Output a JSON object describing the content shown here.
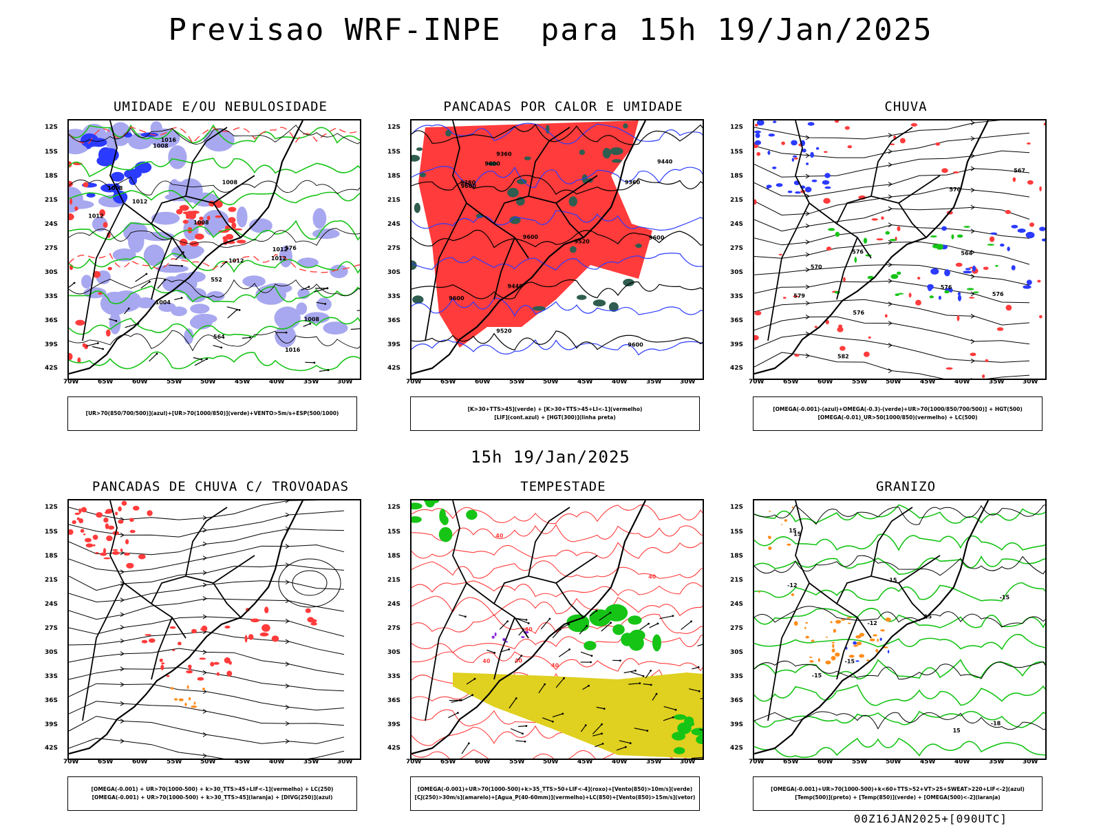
{
  "main_title": "Previsao WRF-INPE  para 15h 19/Jan/2025",
  "mid_title": "15h 19/Jan/2025",
  "run_label": "00Z16JAN2025+[090UTC]",
  "axes": {
    "lat_labels": [
      "12S",
      "15S",
      "18S",
      "21S",
      "24S",
      "27S",
      "30S",
      "33S",
      "36S",
      "39S",
      "42S"
    ],
    "lon_labels": [
      "70W",
      "65W",
      "60W",
      "55W",
      "50W",
      "45W",
      "40W",
      "35W",
      "30W"
    ]
  },
  "colors": {
    "red": "#ff3b3b",
    "blue": "#2b3bff",
    "green": "#16c416",
    "lavender": "#a8a8f0",
    "darkgreen": "#2f5d50",
    "yellow": "#e0d020",
    "orange": "#ff8c1a",
    "purple": "#8a2be2"
  },
  "panels": [
    {
      "title": "UMIDADE E/OU NEBULOSIDADE",
      "legend": [
        "[UR>70(850/700/500)](azul)+[UR>70(1000/850)](verde)+VENTO>5m/s+ESP(500/1000)"
      ],
      "labels": [
        "1012",
        "1008",
        "1008",
        "1008",
        "1004",
        "1008",
        "1012",
        "1012",
        "1008",
        "1012",
        "1016",
        "1012",
        "1016",
        "576",
        "552",
        "564"
      ]
    },
    {
      "title": "PANCADAS POR CALOR E UMIDADE",
      "legend": [
        "[K>30+TTS>45](verde) + [K>30+TTS>45+LI<-1](vermelho)",
        "[LIF](cont.azul) + [HGT(300)](linha preta)"
      ],
      "labels": [
        "9600",
        "9600",
        "9600",
        "9600",
        "9600",
        "9600",
        "9520",
        "9520",
        "9440",
        "9440",
        "9360",
        "9360",
        "9280"
      ]
    },
    {
      "title": "CHUVA",
      "legend": [
        "[OMEGA(-0.001)-(azul)+OMEGA(-0.3)-(verde)+UR>70(1000/850/700/500)] + HGT(500)",
        "[OMEGA(-0.01)_UR>50(1000/850)(vermelho) + LC(500)"
      ],
      "labels": [
        "582",
        "576",
        "576",
        "576",
        "576",
        "570",
        "570",
        "567",
        "564",
        "579"
      ]
    },
    {
      "title": "PANCADAS DE CHUVA C/ TROVOADAS",
      "legend": [
        "[OMEGA(-0.001) + UR>70(1000-500) + k>30_TTS>45+LIF<-1](vermelho) + LC(250)",
        "[OMEGA(-0.001) + UR>70(1000-500) + k>30_TTS>45](laranja) + [DIVG(250)](azul)"
      ],
      "labels": []
    },
    {
      "title": "TEMPESTADE",
      "legend": [
        "[OMEGA(-0.001)+UR>70(1000-500)+k>35_TTS>50+LIF<-4](roxo)+[Vento(850)>10m/s](verde)",
        "[CJ(250)>30m/s](amarelo)+[Agua_P(40-60mm)](vermelho)+LC(850)+[Vento(850)>15m/s](vetor)"
      ],
      "labels": [
        "40",
        "40",
        "40",
        "40",
        "40",
        "40"
      ]
    },
    {
      "title": "GRANIZO",
      "legend": [
        "[OMEGA(-0.001)+UR>70(1000-500)+k<60+TTS>52+VT>25+SWEAT>220+LIF<-2](azul)",
        "[Temp(500)](preto) + [Temp(850)](verde) + [OMEGA(500)<-2](laranja)"
      ],
      "labels": [
        "-12",
        "-12",
        "-15",
        "-15",
        "-15",
        "-15",
        "-18",
        "15",
        "15",
        "15",
        "15"
      ]
    }
  ]
}
